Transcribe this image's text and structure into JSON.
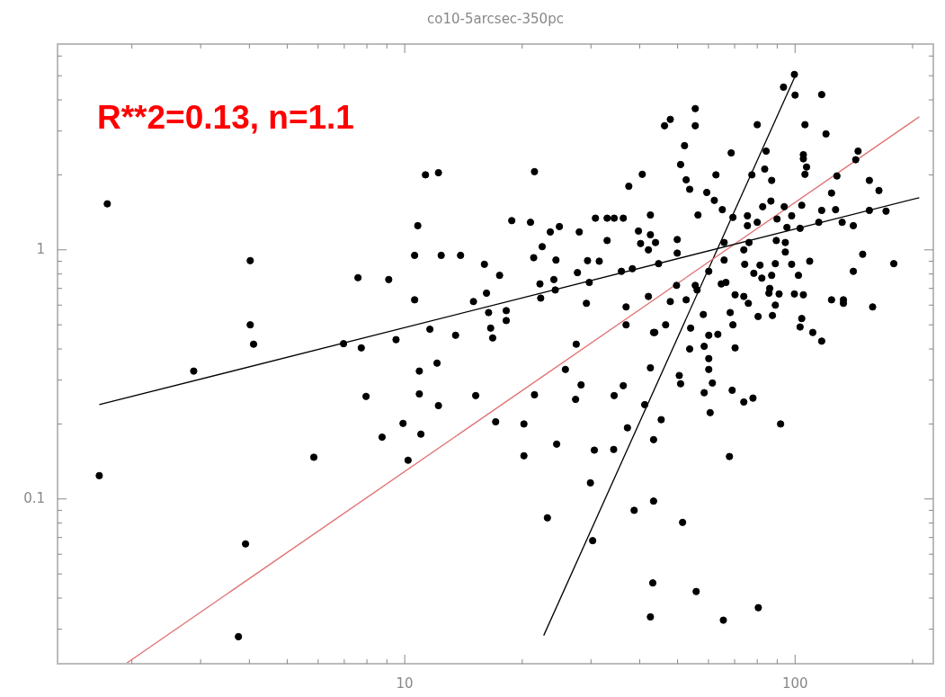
{
  "chart_data": {
    "type": "scatter",
    "title": "co10-5arcsec-350pc",
    "annotations": [
      "R**2=0.13, n=1.1"
    ],
    "log": "xy",
    "grid": false,
    "legend": false,
    "marker": "circle",
    "xlim": [
      1.29,
      226
    ],
    "ylim": [
      0.0218,
      6.7
    ],
    "xticks": [
      {
        "value": 2,
        "label": null
      },
      {
        "value": 3,
        "label": null
      },
      {
        "value": 4,
        "label": null
      },
      {
        "value": 5,
        "label": null
      },
      {
        "value": 6,
        "label": null
      },
      {
        "value": 7,
        "label": null
      },
      {
        "value": 8,
        "label": null
      },
      {
        "value": 9,
        "label": null
      },
      10,
      {
        "value": 20,
        "label": null
      },
      {
        "value": 30,
        "label": null
      },
      {
        "value": 40,
        "label": null
      },
      {
        "value": 50,
        "label": null
      },
      {
        "value": 60,
        "label": null
      },
      {
        "value": 70,
        "label": null
      },
      {
        "value": 80,
        "label": null
      },
      {
        "value": 90,
        "label": null
      },
      100,
      {
        "value": 200,
        "label": null
      }
    ],
    "yticks": [
      {
        "value": 0.03,
        "label": null
      },
      {
        "value": 0.04,
        "label": null
      },
      {
        "value": 0.05,
        "label": null
      },
      {
        "value": 0.06,
        "label": null
      },
      {
        "value": 0.07,
        "label": null
      },
      {
        "value": 0.08,
        "label": null
      },
      {
        "value": 0.09,
        "label": null
      },
      0.1,
      {
        "value": 0.2,
        "label": null
      },
      {
        "value": 0.3,
        "label": null
      },
      {
        "value": 0.4,
        "label": null
      },
      {
        "value": 0.5,
        "label": null
      },
      {
        "value": 0.6,
        "label": null
      },
      {
        "value": 0.7,
        "label": null
      },
      {
        "value": 0.8,
        "label": null
      },
      {
        "value": 0.9,
        "label": null
      },
      1,
      {
        "value": 2,
        "label": null
      },
      {
        "value": 3,
        "label": null
      },
      {
        "value": 4,
        "label": null
      },
      {
        "value": 5,
        "label": null
      },
      {
        "value": 6,
        "label": null
      }
    ],
    "series": [
      {
        "type": "scatter",
        "color": "#000000",
        "x": [
          1.73,
          1.65,
          2.88,
          4.02,
          4.02,
          4.1,
          6.97,
          7.59,
          9.1,
          7.74,
          11.3,
          12.2,
          21.5,
          10.8,
          10.6,
          12.4,
          13.9,
          16.0,
          17.5,
          10.6,
          11.6,
          9.5,
          13.5,
          15.0,
          16.2,
          16.4,
          16.6,
          16.8,
          18.2,
          18.2,
          18.8,
          21.0,
          23.6,
          24.9,
          22.5,
          21.4,
          24.4,
          22.2,
          24.1,
          24.3,
          22.3,
          28.0,
          30.8,
          33.0,
          34.4,
          36.3,
          37.5,
          40.6,
          33.0,
          29.4,
          31.5,
          27.7,
          29.7,
          29.2,
          27.5,
          35.9,
          38.3,
          36.9,
          36.9,
          42.1,
          39.7,
          42.6,
          42.6,
          40.2,
          42.1,
          43.4,
          99.6,
          93.4,
          100,
          117,
          55.5,
          46.3,
          47.9,
          55.5,
          80,
          106,
          120,
          52.1,
          68.6,
          84.3,
          105,
          105,
          107,
          106,
          83.6,
          77.5,
          50.9,
          62.7,
          52.6,
          53.7,
          59.4,
          62.1,
          65.1,
          87.1,
          145,
          143,
          128,
          124,
          155,
          164,
          56.4,
          69.3,
          75.5,
          82.6,
          86.7,
          93.8,
          104,
          98,
          89.9,
          80,
          75.5,
          95.3,
          103,
          115,
          117,
          127,
          132,
          141,
          155,
          171,
          179,
          149,
          141,
          124,
          133,
          133,
          158,
          109,
          102,
          98,
          89,
          94.4,
          94.4,
          89.5,
          76.2,
          73.9,
          65.8,
          65.8,
          74.3,
          81.3,
          78.4,
          82.2,
          87.1,
          86.1,
          85.7,
          91,
          99.6,
          105,
          89,
          80.4,
          87.5,
          104,
          103,
          111,
          117,
          70.2,
          73.9,
          75.9,
          68.2,
          69.3,
          70.2,
          60.1,
          63.4,
          58.5,
          53.7,
          64.7,
          66.5,
          55.5,
          56.1,
          52.6,
          47.9,
          58.2,
          54.0,
          46.6,
          43.7,
          60.1,
          49.9,
          43.9,
          44.7,
          49.9,
          49.7,
          7.96,
          10.9,
          12.1,
          10.9,
          12.2,
          8.75,
          9.9,
          11.0,
          10.2,
          15.2,
          17.1,
          21.5,
          20.2,
          20.2,
          25.8,
          28.3,
          27.4,
          34.4,
          36.3,
          42.6,
          41.2,
          37.2,
          43.4,
          24.5,
          30.6,
          34.3,
          29.9,
          23.2,
          30.3,
          38.7,
          43.4,
          43.2,
          42.6,
          60.1,
          60.1,
          50.5,
          50.9,
          61.4,
          58.5,
          69.0,
          73.9,
          78.0,
          60.6,
          91.8,
          45.4,
          67.9,
          51.5,
          55.8,
          80.5,
          65.5,
          5.85,
          3.91,
          3.75
        ],
        "values": [
          1.53,
          0.124,
          0.326,
          0.905,
          0.5,
          0.418,
          0.42,
          0.773,
          0.76,
          0.404,
          2.0,
          2.04,
          2.06,
          1.25,
          0.95,
          0.95,
          0.95,
          0.875,
          0.79,
          0.63,
          0.48,
          0.436,
          0.454,
          0.62,
          0.67,
          0.56,
          0.485,
          0.443,
          0.57,
          0.52,
          1.31,
          1.29,
          1.18,
          1.24,
          1.03,
          0.93,
          0.91,
          0.73,
          0.76,
          0.69,
          0.64,
          1.18,
          1.34,
          1.34,
          1.34,
          1.34,
          1.8,
          2.01,
          1.09,
          0.905,
          0.9,
          0.81,
          0.74,
          0.61,
          0.418,
          0.82,
          0.84,
          0.59,
          0.5,
          0.65,
          1.19,
          1.38,
          1.15,
          1.06,
          1.0,
          0.466,
          5.06,
          4.5,
          4.18,
          4.2,
          3.69,
          3.15,
          3.34,
          3.15,
          3.18,
          3.18,
          2.92,
          2.62,
          2.45,
          2.49,
          2.41,
          2.32,
          2.15,
          2.01,
          2.11,
          2.0,
          2.2,
          2.0,
          1.91,
          1.75,
          1.7,
          1.58,
          1.45,
          1.9,
          2.49,
          2.3,
          1.98,
          1.69,
          1.9,
          1.73,
          1.38,
          1.35,
          1.37,
          1.49,
          1.57,
          1.49,
          1.51,
          1.37,
          1.33,
          1.29,
          1.25,
          1.23,
          1.22,
          1.29,
          1.44,
          1.45,
          1.29,
          1.25,
          1.44,
          1.43,
          0.88,
          0.96,
          0.82,
          0.63,
          0.63,
          0.61,
          0.59,
          0.9,
          0.79,
          0.875,
          0.88,
          0.98,
          1.07,
          1.09,
          1.07,
          1.0,
          1.07,
          0.91,
          0.875,
          0.868,
          0.805,
          0.77,
          0.79,
          0.7,
          0.67,
          0.665,
          0.665,
          0.66,
          0.6,
          0.54,
          0.545,
          0.53,
          0.49,
          0.466,
          0.43,
          0.66,
          0.65,
          0.61,
          0.56,
          0.5,
          0.404,
          0.454,
          0.458,
          0.41,
          0.4,
          0.73,
          0.74,
          0.72,
          0.69,
          0.63,
          0.62,
          0.55,
          0.485,
          0.5,
          0.466,
          0.82,
          1.1,
          1.07,
          0.88,
          0.97,
          0.72,
          0.258,
          0.326,
          0.351,
          0.264,
          0.237,
          0.177,
          0.201,
          0.182,
          0.143,
          0.26,
          0.204,
          0.262,
          0.2,
          0.149,
          0.331,
          0.287,
          0.251,
          0.26,
          0.285,
          0.336,
          0.239,
          0.193,
          0.173,
          0.166,
          0.157,
          0.158,
          0.116,
          0.084,
          0.068,
          0.09,
          0.098,
          0.046,
          0.0336,
          0.366,
          0.331,
          0.313,
          0.29,
          0.292,
          0.267,
          0.273,
          0.245,
          0.254,
          0.222,
          0.2,
          0.208,
          0.148,
          0.0805,
          0.0425,
          0.0366,
          0.0326,
          0.147,
          0.066,
          0.028
        ]
      },
      {
        "type": "line",
        "marker": "none",
        "color": "#000000",
        "x": [
          1.65,
          208
        ],
        "values": [
          0.239,
          1.62
        ]
      },
      {
        "type": "line",
        "marker": "none",
        "color": "#e07070",
        "x": [
          1.93,
          208
        ],
        "values": [
          0.0218,
          3.42
        ]
      },
      {
        "type": "line",
        "marker": "none",
        "color": "#000000",
        "x": [
          22.7,
          100.5
        ],
        "values": [
          0.0283,
          5.06
        ]
      }
    ]
  }
}
